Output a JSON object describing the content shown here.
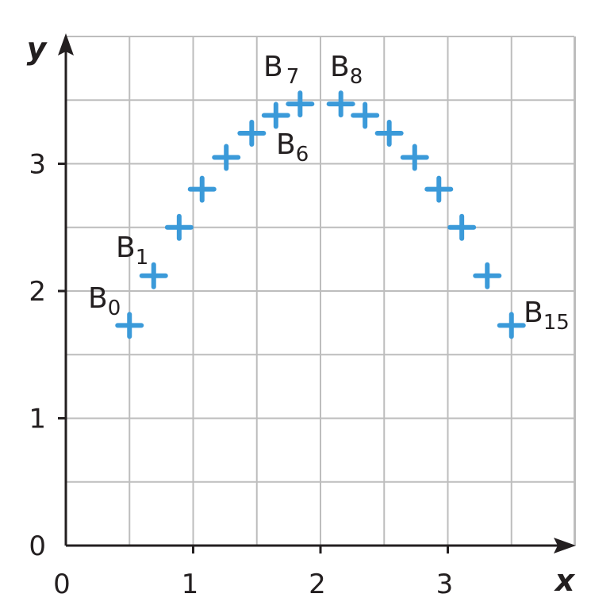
{
  "chart_data": {
    "type": "scatter",
    "title": "",
    "xlabel": "x",
    "ylabel": "y",
    "xlim": [
      0,
      4
    ],
    "ylim": [
      0,
      4
    ],
    "grid": true,
    "grid_step": 0.5,
    "x_ticks": [
      "0",
      "1",
      "2",
      "3"
    ],
    "y_ticks": [
      "0",
      "1",
      "2",
      "3"
    ],
    "marker": "plus",
    "marker_color": "#3b9ad9",
    "axis_color": "#231f20",
    "grid_color": "#bdbdbd",
    "points": [
      {
        "x": 0.5,
        "y": 1.73
      },
      {
        "x": 0.69,
        "y": 2.12
      },
      {
        "x": 0.89,
        "y": 2.5
      },
      {
        "x": 1.07,
        "y": 2.8
      },
      {
        "x": 1.26,
        "y": 3.05
      },
      {
        "x": 1.46,
        "y": 3.24
      },
      {
        "x": 1.65,
        "y": 3.38
      },
      {
        "x": 1.84,
        "y": 3.47
      },
      {
        "x": 2.16,
        "y": 3.47
      },
      {
        "x": 2.35,
        "y": 3.38
      },
      {
        "x": 2.54,
        "y": 3.24
      },
      {
        "x": 2.74,
        "y": 3.05
      },
      {
        "x": 2.93,
        "y": 2.8
      },
      {
        "x": 3.11,
        "y": 2.5
      },
      {
        "x": 3.31,
        "y": 2.12
      },
      {
        "x": 3.5,
        "y": 1.73
      }
    ],
    "annotations": [
      {
        "base": "B",
        "sub": "0"
      },
      {
        "base": "B",
        "sub": "1"
      },
      {
        "base": "B",
        "sub": "6"
      },
      {
        "base": "B",
        "sub": "7"
      },
      {
        "base": "B",
        "sub": "8"
      },
      {
        "base": "B",
        "sub": "15"
      }
    ]
  }
}
